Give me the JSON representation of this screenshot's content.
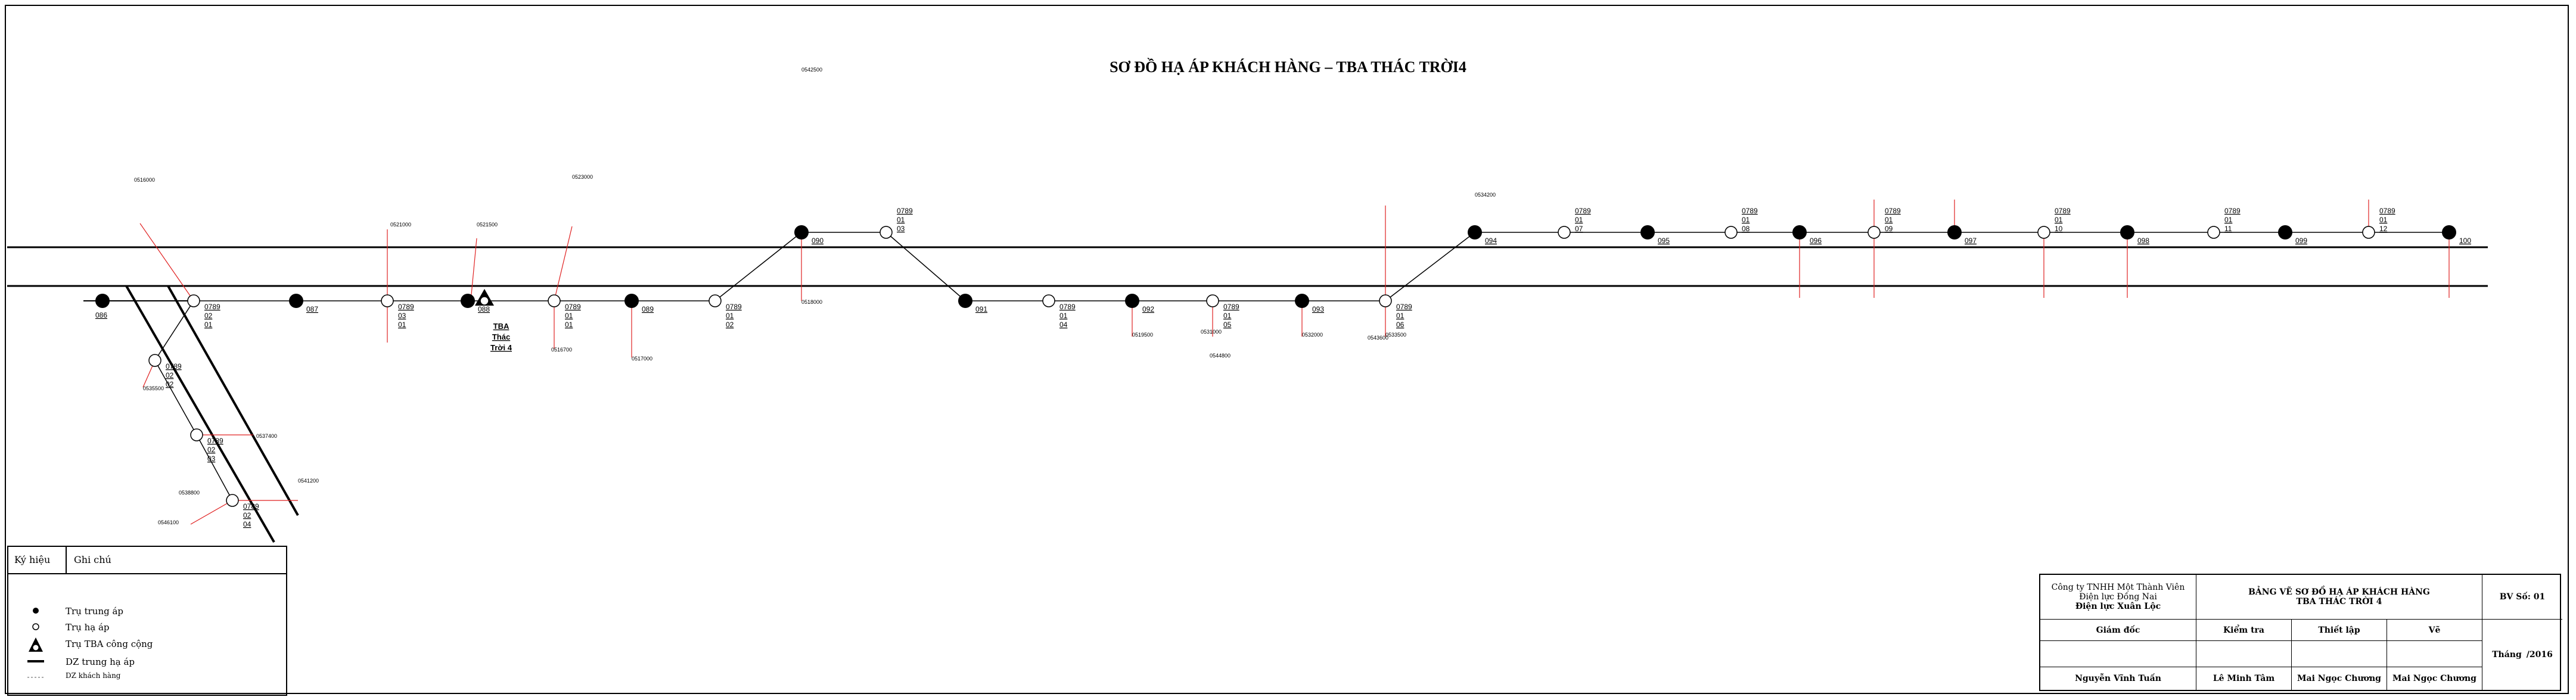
{
  "title": "SƠ ĐỒ HẠ ÁP KHÁCH HÀNG – TBA THÁC TRỜI4",
  "transformer": {
    "name": [
      "TBA",
      "Thác",
      "Trời 4"
    ]
  },
  "poles": {
    "medium": [
      "086",
      "087",
      "088",
      "089",
      "090",
      "091",
      "092",
      "093",
      "094",
      "095",
      "096",
      "097",
      "098",
      "099",
      "100"
    ],
    "low": [
      [
        "0789",
        "02",
        "01"
      ],
      [
        "0789",
        "03",
        "01"
      ],
      [
        "0789",
        "01",
        "01"
      ],
      [
        "0789",
        "01",
        "02"
      ],
      [
        "0789",
        "01",
        "03"
      ],
      [
        "0789",
        "01",
        "04"
      ],
      [
        "0789",
        "01",
        "05"
      ],
      [
        "0789",
        "01",
        "06"
      ],
      [
        "0789",
        "01",
        "07"
      ],
      [
        "0789",
        "01",
        "08"
      ],
      [
        "0789",
        "01",
        "09"
      ],
      [
        "0789",
        "01",
        "10"
      ],
      [
        "0789",
        "01",
        "11"
      ],
      [
        "0789",
        "01",
        "12"
      ],
      [
        "0789",
        "02",
        "02"
      ],
      [
        "0789",
        "02",
        "03"
      ],
      [
        "0789",
        "02",
        "04"
      ]
    ]
  },
  "customers": [
    "0516000",
    "0521000",
    "0521500",
    "0523000",
    "0516700",
    "0517000",
    "0518000",
    "0519500",
    "0531000",
    "0532000",
    "0533500",
    "0534200",
    "0535500",
    "0537400",
    "0538800",
    "0541200",
    "0542500",
    "0543600",
    "0544800",
    "0546100"
  ],
  "legend": {
    "header": [
      "Ký hiệu",
      "Ghi chú"
    ],
    "items": [
      {
        "icon": "medium-pole-icon",
        "label": "Trụ trung áp"
      },
      {
        "icon": "low-pole-icon",
        "label": "Trụ hạ áp"
      },
      {
        "icon": "transformer-pole-icon",
        "label": "Trụ TBA công cộng"
      },
      {
        "icon": "line-icon",
        "label": "DZ trung hạ áp"
      },
      {
        "icon": "customer-icon",
        "label": "DZ khách hàng"
      }
    ]
  },
  "title_block": {
    "company": [
      "Công ty TNHH Một Thành Viên",
      "Điện lực Đồng Nai",
      "Điện lực Xuân Lộc"
    ],
    "drawing_title": [
      "BẢNG VẼ SƠ ĐỒ HẠ ÁP KHÁCH HÀNG",
      "TBA THÁC TRỜI 4"
    ],
    "drawing_no": "BV Số: 01",
    "roles": [
      "Giám đốc",
      "Kiểm tra",
      "Thiết lập",
      "Vẽ"
    ],
    "names": [
      "Nguyễn Vĩnh Tuấn",
      "Lê Minh Tâm",
      "Mai Ngọc Chương",
      "Mai Ngọc Chương"
    ],
    "date": [
      "Tháng",
      "/2016"
    ]
  },
  "colors": {
    "line": "#000000",
    "customer_line": "#e02020",
    "background": "#ffffff"
  }
}
